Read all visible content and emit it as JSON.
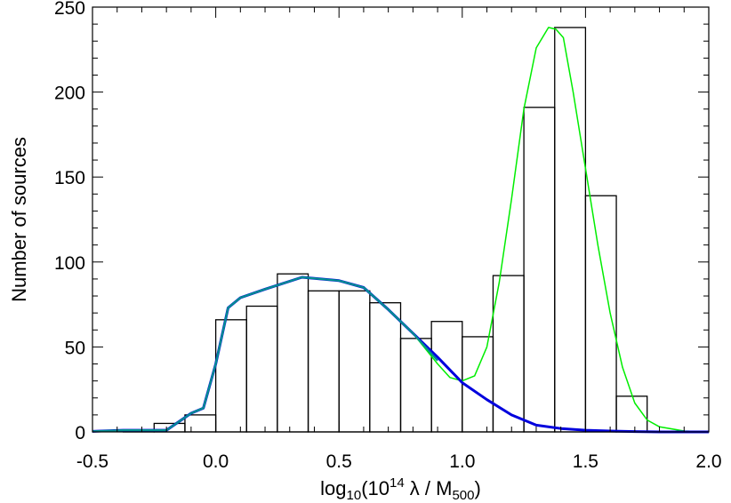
{
  "chart_data": {
    "type": "bar",
    "title": "",
    "xlabel": {
      "prefix": "log",
      "sub1": "10",
      "mid1": "(10",
      "sup": "14",
      "mid2": " λ / M",
      "sub2": "500",
      "suffix": ")"
    },
    "ylabel": "Number of sources",
    "xlim": [
      -0.5,
      2.0
    ],
    "ylim": [
      0,
      250
    ],
    "grid": false,
    "x_ticks": [
      "-0.5",
      "0.0",
      "0.5",
      "1.0",
      "1.5",
      "2.0"
    ],
    "y_ticks": [
      "0",
      "50",
      "100",
      "150",
      "200",
      "250"
    ],
    "x_tick_values": [
      -0.5,
      0.0,
      0.5,
      1.0,
      1.5,
      2.0
    ],
    "y_tick_values": [
      0,
      50,
      100,
      150,
      200,
      250
    ],
    "bin_edges": [
      -0.375,
      -0.25,
      -0.125,
      0.0,
      0.125,
      0.25,
      0.375,
      0.5,
      0.625,
      0.75,
      0.875,
      1.0,
      1.125,
      1.25,
      1.375,
      1.5,
      1.625,
      1.75
    ],
    "values": [
      1,
      5,
      10,
      66,
      74,
      93,
      83,
      83,
      76,
      55,
      65,
      56,
      92,
      191,
      238,
      139,
      21
    ],
    "series": [
      {
        "style": "line",
        "color": "#00ee00",
        "x": [
          -0.5,
          -0.375,
          -0.25,
          -0.2,
          -0.1,
          -0.05,
          0.0,
          0.05,
          0.1,
          0.2,
          0.35,
          0.5,
          0.6,
          0.7,
          0.8,
          0.9,
          0.95,
          1.0,
          1.05,
          1.1,
          1.15,
          1.2,
          1.25,
          1.3,
          1.35,
          1.38,
          1.41,
          1.45,
          1.5,
          1.55,
          1.6,
          1.65,
          1.7,
          1.75,
          1.8,
          1.9,
          2.0
        ],
        "y": [
          0.3,
          1,
          1,
          1,
          11,
          14,
          40,
          73,
          79,
          84,
          91,
          89,
          85,
          72,
          58,
          40,
          32,
          30,
          33,
          50,
          88,
          137,
          190,
          226,
          238,
          237,
          232,
          200,
          155,
          110,
          70,
          38,
          17,
          7,
          3,
          0.5,
          0
        ]
      },
      {
        "style": "line",
        "color": "#0000dd",
        "x": [
          -0.5,
          -0.375,
          -0.25,
          -0.2,
          -0.1,
          -0.05,
          0.0,
          0.05,
          0.1,
          0.2,
          0.35,
          0.5,
          0.6,
          0.7,
          0.8,
          0.9,
          1.0,
          1.1,
          1.2,
          1.3,
          1.4,
          1.5,
          1.6,
          1.7,
          1.8,
          2.0
        ],
        "y": [
          0.3,
          1,
          1,
          1,
          11,
          14,
          40,
          73,
          79,
          84,
          91,
          89,
          85,
          72,
          58,
          44,
          29,
          19,
          10,
          4,
          2,
          1,
          0.5,
          0.2,
          0,
          0
        ]
      },
      {
        "style": "line",
        "color": "#009090",
        "x": [
          -0.5,
          -0.375,
          -0.25,
          -0.2,
          -0.1,
          -0.05,
          0.0,
          0.05,
          0.1,
          0.2,
          0.35,
          0.5,
          0.6,
          0.7,
          0.8,
          0.9
        ],
        "y": [
          0.3,
          1,
          1,
          1,
          11,
          14,
          40,
          73,
          79,
          84,
          91,
          89,
          85,
          72,
          58,
          42
        ]
      }
    ]
  }
}
